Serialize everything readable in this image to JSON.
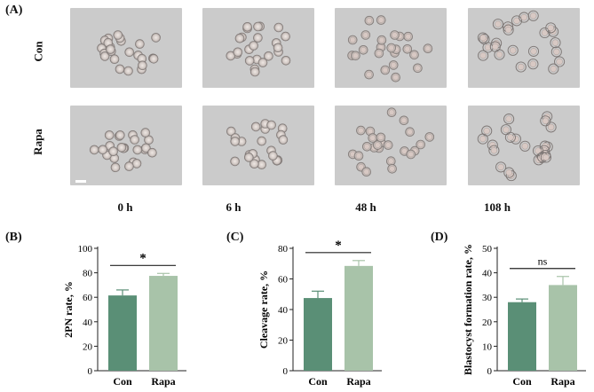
{
  "panelA": {
    "letter": "(A)",
    "rows": [
      {
        "label": "Con"
      },
      {
        "label": "Rapa"
      }
    ],
    "times": [
      "0 h",
      "6 h",
      "48 h",
      "108 h"
    ]
  },
  "charts": [
    {
      "letter": "(B)",
      "chart_data": {
        "type": "bar",
        "categories": [
          "Con",
          "Rapa"
        ],
        "values": [
          61.5,
          77.5
        ],
        "errors": [
          4.5,
          2.0
        ],
        "ylabel": "2PN rate, %",
        "ylim": [
          0,
          100
        ],
        "yticks": [
          "0",
          "20",
          "40",
          "60",
          "80",
          "100"
        ],
        "significance": "*",
        "colors": [
          "#5a8f76",
          "#a8c3a9"
        ]
      }
    },
    {
      "letter": "(C)",
      "chart_data": {
        "type": "bar",
        "categories": [
          "Con",
          "Rapa"
        ],
        "values": [
          47.5,
          68.5
        ],
        "errors": [
          4.5,
          3.5
        ],
        "ylabel": "Cleavage rate, %",
        "ylim": [
          0,
          80
        ],
        "yticks": [
          "0",
          "20",
          "40",
          "60",
          "80"
        ],
        "significance": "*",
        "colors": [
          "#5a8f76",
          "#a8c3a9"
        ]
      }
    },
    {
      "letter": "(D)",
      "chart_data": {
        "type": "bar",
        "categories": [
          "Con",
          "Rapa"
        ],
        "values": [
          28,
          35
        ],
        "errors": [
          1.3,
          3.5
        ],
        "ylabel": "Blastocyst formation rate, %",
        "ylim": [
          0,
          50
        ],
        "yticks": [
          "0",
          "10",
          "20",
          "30",
          "40",
          "50"
        ],
        "significance": "ns",
        "colors": [
          "#5a8f76",
          "#a8c3a9"
        ]
      }
    }
  ]
}
